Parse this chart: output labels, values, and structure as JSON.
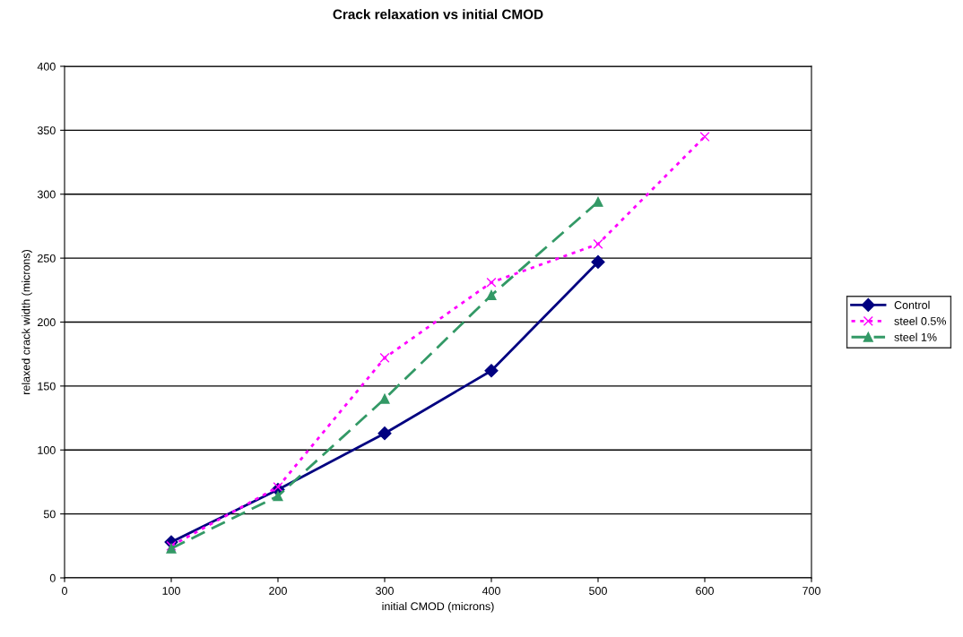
{
  "chart_data": {
    "type": "line",
    "title": "Crack relaxation vs initial CMOD",
    "xlabel": "initial CMOD (microns)",
    "ylabel": "relaxed crack width (microns)",
    "x": [
      100,
      200,
      300,
      400,
      500,
      600
    ],
    "series": [
      {
        "name": "Control",
        "color": "#000080",
        "values": [
          28,
          69,
          113,
          162,
          247,
          null
        ],
        "marker": "diamond",
        "line_style": "solid"
      },
      {
        "name": "steel 0.5%",
        "color": "#ff00ff",
        "values": [
          25,
          71,
          172,
          231,
          261,
          345
        ],
        "marker": "cross",
        "line_style": "dotted"
      },
      {
        "name": "steel 1%",
        "color": "#339966",
        "values": [
          23,
          64,
          140,
          221,
          294,
          null
        ],
        "marker": "triangle",
        "line_style": "dashed"
      }
    ],
    "xlim": [
      0,
      700
    ],
    "xticks": [
      0,
      100,
      200,
      300,
      400,
      500,
      600,
      700
    ],
    "ylim": [
      0,
      400
    ],
    "yticks": [
      0,
      50,
      100,
      150,
      200,
      250,
      300,
      350,
      400
    ],
    "grid": "y",
    "legend": "right"
  }
}
